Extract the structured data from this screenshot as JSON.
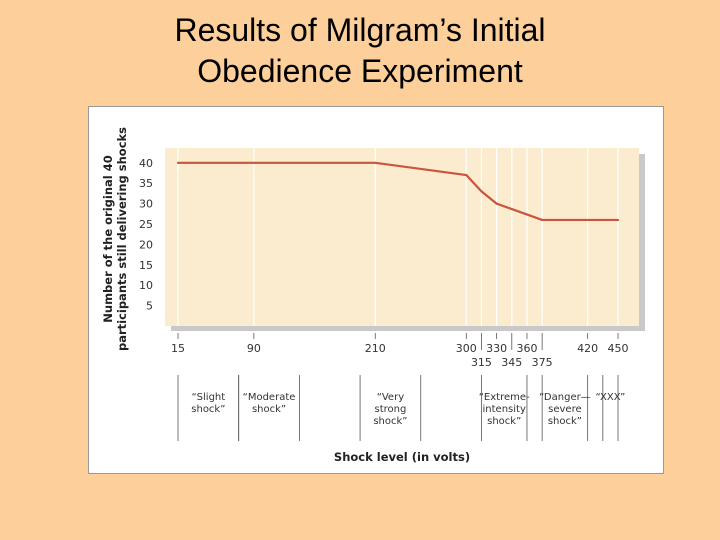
{
  "slide": {
    "title_line1": "Results of Milgram’s Initial",
    "title_line2": "Obedience Experiment"
  },
  "chart_data": {
    "type": "line",
    "title": "Results of Milgram’s Initial Obedience Experiment",
    "xlabel": "Shock level (in volts)",
    "ylabel_line1": "Number of the original 40",
    "ylabel_line2": "participants still delivering shocks",
    "ylim": [
      0,
      42
    ],
    "yticks": [
      5,
      10,
      15,
      20,
      25,
      30,
      35,
      40
    ],
    "xticks": [
      15,
      90,
      210,
      300,
      315,
      330,
      345,
      360,
      375,
      420,
      450
    ],
    "series": [
      {
        "name": "Participants still delivering shocks",
        "x": [
          15,
          210,
          300,
          315,
          330,
          375,
          450
        ],
        "y": [
          40,
          40,
          37,
          33,
          30,
          26,
          26
        ]
      }
    ],
    "categories": [
      {
        "lines": [
          "“Slight",
          "shock”"
        ],
        "from": 15,
        "to": 75
      },
      {
        "lines": [
          "“Moderate",
          "shock”"
        ],
        "from": 75,
        "to": 135
      },
      {
        "lines": [
          "“Very",
          "strong",
          "shock”"
        ],
        "from": 195,
        "to": 255
      },
      {
        "lines": [
          "“Extreme-",
          "intensity",
          "shock”"
        ],
        "from": 315,
        "to": 360
      },
      {
        "lines": [
          "“Danger—",
          "severe",
          "shock”"
        ],
        "from": 375,
        "to": 420
      },
      {
        "lines": [
          "“XXX”"
        ],
        "from": 435,
        "to": 450
      }
    ],
    "colors": {
      "line": "#c8553d",
      "plot_bg": "#fbeccf",
      "grid": "#ffffff",
      "shadow": "#c9c9c9",
      "axis_text": "#333333"
    }
  }
}
